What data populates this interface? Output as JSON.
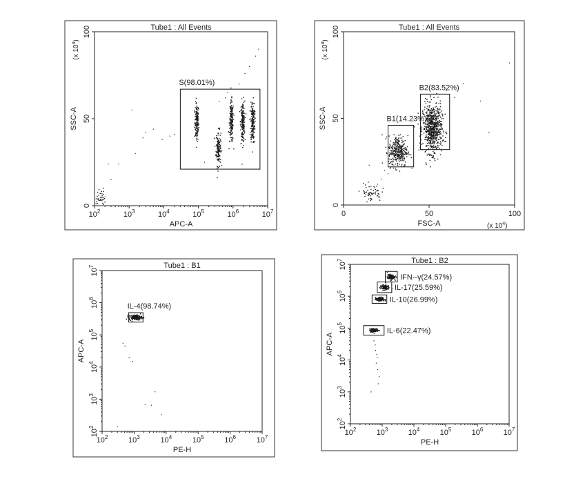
{
  "chart_data": [
    {
      "type": "scatter",
      "title": "Tube1 : All Events",
      "xlabel": "APC-A",
      "ylabel": "SSC-A",
      "x_scale": "log",
      "xlim": [
        100,
        10000000
      ],
      "ylim": [
        0,
        1000000
      ],
      "x_ticks": [
        {
          "v": 100,
          "b": "10",
          "e": "2"
        },
        {
          "v": 1000,
          "b": "10",
          "e": "3"
        },
        {
          "v": 10000,
          "b": "10",
          "e": "4"
        },
        {
          "v": 100000,
          "b": "10",
          "e": "5"
        },
        {
          "v": 1000000,
          "b": "10",
          "e": "6"
        },
        {
          "v": 10000000,
          "b": "10",
          "e": "7"
        }
      ],
      "y_ticks": [
        {
          "v": 0,
          "t": "0"
        },
        {
          "v": 500000,
          "t": "50"
        },
        {
          "v": 1000000,
          "t": "100"
        }
      ],
      "y_multiplier": {
        "text": "(x 10",
        "exp": "4",
        "close": ")"
      },
      "x_multiplier": null,
      "clusters": [
        {
          "x": 90000,
          "y": 480000,
          "sx": 0.03,
          "sy": 55000,
          "n": 150
        },
        {
          "x": 380000,
          "y": 330000,
          "sx": 0.035,
          "sy": 50000,
          "n": 140
        },
        {
          "x": 900000,
          "y": 480000,
          "sx": 0.03,
          "sy": 60000,
          "n": 170
        },
        {
          "x": 1900000,
          "y": 480000,
          "sx": 0.03,
          "sy": 60000,
          "n": 170
        },
        {
          "x": 3700000,
          "y": 480000,
          "sx": 0.03,
          "sy": 60000,
          "n": 170
        },
        {
          "x": 140,
          "y": 40000,
          "sx": 0.08,
          "sy": 30000,
          "n": 40
        }
      ],
      "scatter": [
        [
          300,
          150000
        ],
        [
          500,
          240000
        ],
        [
          1500,
          300000
        ],
        [
          2500,
          390000
        ],
        [
          3000,
          420000
        ],
        [
          5000,
          440000
        ],
        [
          1200,
          550000
        ],
        [
          9000,
          380000
        ],
        [
          15000,
          400000
        ],
        [
          20000,
          410000
        ],
        [
          150000,
          250000
        ],
        [
          400000,
          600000
        ],
        [
          700000,
          650000
        ],
        [
          1500000,
          700000
        ],
        [
          2200000,
          760000
        ],
        [
          3000000,
          800000
        ],
        [
          4500000,
          860000
        ],
        [
          5500000,
          900000
        ],
        [
          200,
          50000
        ],
        [
          130,
          60000
        ],
        [
          250,
          240000
        ],
        [
          600000,
          620000
        ]
      ],
      "gates": [
        {
          "label": "S(98.01%)",
          "x": [
            30000,
            6000000
          ],
          "y": [
            210000,
            670000
          ],
          "label_pos": "above-left"
        }
      ]
    },
    {
      "type": "scatter",
      "title": "Tube1 : All Events",
      "xlabel": "FSC-A",
      "ylabel": "SSC-A",
      "x_scale": "linear",
      "xlim": [
        0,
        1000000
      ],
      "ylim": [
        0,
        1000000
      ],
      "x_ticks": [
        {
          "v": 0,
          "t": "0"
        },
        {
          "v": 500000,
          "t": "50"
        },
        {
          "v": 1000000,
          "t": "100"
        }
      ],
      "y_ticks": [
        {
          "v": 0,
          "t": "0"
        },
        {
          "v": 500000,
          "t": "50"
        },
        {
          "v": 1000000,
          "t": "100"
        }
      ],
      "y_multiplier": {
        "text": "(x 10",
        "exp": "4",
        "close": ")"
      },
      "x_multiplier": {
        "text": "(x 10",
        "exp": "4",
        "close": ")"
      },
      "clusters": [
        {
          "x": 520000,
          "y": 440000,
          "sx": 28000,
          "sy": 70000,
          "n": 700
        },
        {
          "x": 320000,
          "y": 310000,
          "sx": 28000,
          "sy": 45000,
          "n": 320
        },
        {
          "x": 160000,
          "y": 70000,
          "sx": 30000,
          "sy": 25000,
          "n": 55
        }
      ],
      "scatter": [
        [
          220000,
          150000
        ],
        [
          260000,
          180000
        ],
        [
          290000,
          230000
        ],
        [
          200000,
          120000
        ],
        [
          180000,
          100000
        ],
        [
          700000,
          700000
        ],
        [
          800000,
          600000
        ],
        [
          850000,
          420000
        ],
        [
          970000,
          820000
        ],
        [
          600000,
          660000
        ],
        [
          650000,
          620000
        ],
        [
          450000,
          380000
        ],
        [
          150000,
          230000
        ],
        [
          130000,
          60000
        ],
        [
          240000,
          200000
        ]
      ],
      "gates": [
        {
          "label": "B1(14.23%)",
          "x": [
            260000,
            410000
          ],
          "y": [
            220000,
            460000
          ],
          "label_pos": "above-left"
        },
        {
          "label": "B2(83.52%)",
          "x": [
            450000,
            620000
          ],
          "y": [
            320000,
            640000
          ],
          "label_pos": "above-left"
        }
      ]
    },
    {
      "type": "scatter",
      "title": "Tube1 : B1",
      "xlabel": "PE-H",
      "ylabel": "APC-A",
      "x_scale": "log",
      "y_scale": "log",
      "xlim": [
        100,
        10000000
      ],
      "ylim": [
        100,
        10000000
      ],
      "x_ticks": [
        {
          "v": 100,
          "b": "10",
          "e": "2"
        },
        {
          "v": 1000,
          "b": "10",
          "e": "3"
        },
        {
          "v": 10000,
          "b": "10",
          "e": "4"
        },
        {
          "v": 100000,
          "b": "10",
          "e": "5"
        },
        {
          "v": 1000000,
          "b": "10",
          "e": "6"
        },
        {
          "v": 10000000,
          "b": "10",
          "e": "7"
        }
      ],
      "y_ticks": [
        {
          "v": 100,
          "b": "10",
          "e": "2"
        },
        {
          "v": 1000,
          "b": "10",
          "e": "3"
        },
        {
          "v": 10000,
          "b": "10",
          "e": "4"
        },
        {
          "v": 100000,
          "b": "10",
          "e": "5"
        },
        {
          "v": 1000000,
          "b": "10",
          "e": "6"
        },
        {
          "v": 10000000,
          "b": "10",
          "e": "7"
        }
      ],
      "y_multiplier": null,
      "x_multiplier": null,
      "clusters": [
        {
          "x": 1100,
          "y": 350000,
          "sx": 0.1,
          "sy": 0.04,
          "n": 170
        }
      ],
      "scatter": [
        [
          450,
          55000
        ],
        [
          520,
          45000
        ],
        [
          700,
          20000
        ],
        [
          900,
          15000
        ],
        [
          3500,
          650
        ],
        [
          2200,
          700
        ],
        [
          7000,
          330
        ],
        [
          4500,
          1700
        ],
        [
          300,
          140
        ]
      ],
      "gates": [
        {
          "label": "IL-4(98.74%)",
          "x": [
            680,
            1900
          ],
          "y": [
            250000,
            490000
          ],
          "label_pos": "above-left"
        }
      ]
    },
    {
      "type": "scatter",
      "title": "Tube1 : B2",
      "xlabel": "PE-H",
      "ylabel": "APC-A",
      "x_scale": "log",
      "y_scale": "log",
      "xlim": [
        100,
        10000000
      ],
      "ylim": [
        100,
        10000000
      ],
      "x_ticks": [
        {
          "v": 100,
          "b": "10",
          "e": "2"
        },
        {
          "v": 1000,
          "b": "10",
          "e": "3"
        },
        {
          "v": 10000,
          "b": "10",
          "e": "4"
        },
        {
          "v": 100000,
          "b": "10",
          "e": "5"
        },
        {
          "v": 1000000,
          "b": "10",
          "e": "6"
        },
        {
          "v": 10000000,
          "b": "10",
          "e": "7"
        }
      ],
      "y_ticks": [
        {
          "v": 100,
          "b": "10",
          "e": "2"
        },
        {
          "v": 1000,
          "b": "10",
          "e": "3"
        },
        {
          "v": 10000,
          "b": "10",
          "e": "4"
        },
        {
          "v": 100000,
          "b": "10",
          "e": "5"
        },
        {
          "v": 1000000,
          "b": "10",
          "e": "6"
        },
        {
          "v": 10000000,
          "b": "10",
          "e": "7"
        }
      ],
      "y_multiplier": null,
      "x_multiplier": null,
      "clusters": [
        {
          "x": 1900,
          "y": 4000000,
          "sx": 0.06,
          "sy": 0.04,
          "n": 110
        },
        {
          "x": 1200,
          "y": 1900000,
          "sx": 0.07,
          "sy": 0.04,
          "n": 110
        },
        {
          "x": 850,
          "y": 800000,
          "sx": 0.07,
          "sy": 0.03,
          "n": 120
        },
        {
          "x": 550,
          "y": 85000,
          "sx": 0.07,
          "sy": 0.03,
          "n": 120
        }
      ],
      "scatter": [
        [
          600,
          30000
        ],
        [
          620,
          20000
        ],
        [
          700,
          12000
        ],
        [
          650,
          8000
        ],
        [
          720,
          5000
        ],
        [
          800,
          3000
        ],
        [
          750,
          1800
        ],
        [
          450,
          1000
        ],
        [
          550,
          40000
        ],
        [
          680,
          15000
        ]
      ],
      "gates": [
        {
          "label": "IFN--γ(24.57%)",
          "x": [
            1250,
            3000
          ],
          "y": [
            2800000,
            6000000
          ],
          "label_pos": "right"
        },
        {
          "label": "IL-17(25.59%)",
          "x": [
            700,
            2000
          ],
          "y": [
            1300000,
            2800000
          ],
          "label_pos": "right"
        },
        {
          "label": "IL-10(26.99%)",
          "x": [
            480,
            1400
          ],
          "y": [
            600000,
            1100000
          ],
          "label_pos": "right"
        },
        {
          "label": "IL-6(22.47%)",
          "x": [
            260,
            1150
          ],
          "y": [
            60000,
            120000
          ],
          "label_pos": "right"
        }
      ]
    }
  ]
}
